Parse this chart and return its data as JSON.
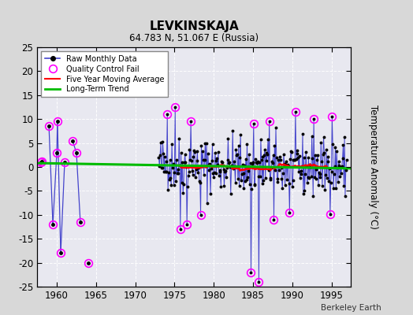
{
  "title": "LEVKINSKAJA",
  "subtitle": "64.783 N, 51.067 E (Russia)",
  "ylabel": "Temperature Anomaly (°C)",
  "credit": "Berkeley Earth",
  "xlim": [
    1957.5,
    1997.5
  ],
  "ylim": [
    -25,
    25
  ],
  "yticks": [
    -25,
    -20,
    -15,
    -10,
    -5,
    0,
    5,
    10,
    15,
    20,
    25
  ],
  "xticks": [
    1960,
    1965,
    1970,
    1975,
    1980,
    1985,
    1990,
    1995
  ],
  "bg_color": "#d8d8d8",
  "plot_bg_color": "#e8e8f0",
  "line_color": "#4444cc",
  "raw_marker_color": "#000000",
  "qc_color": "#ff00ff",
  "ma_color": "#ff0000",
  "trend_color": "#00bb00",
  "trend_x": [
    1957.5,
    1997.5
  ],
  "trend_y": [
    0.8,
    -0.3
  ]
}
